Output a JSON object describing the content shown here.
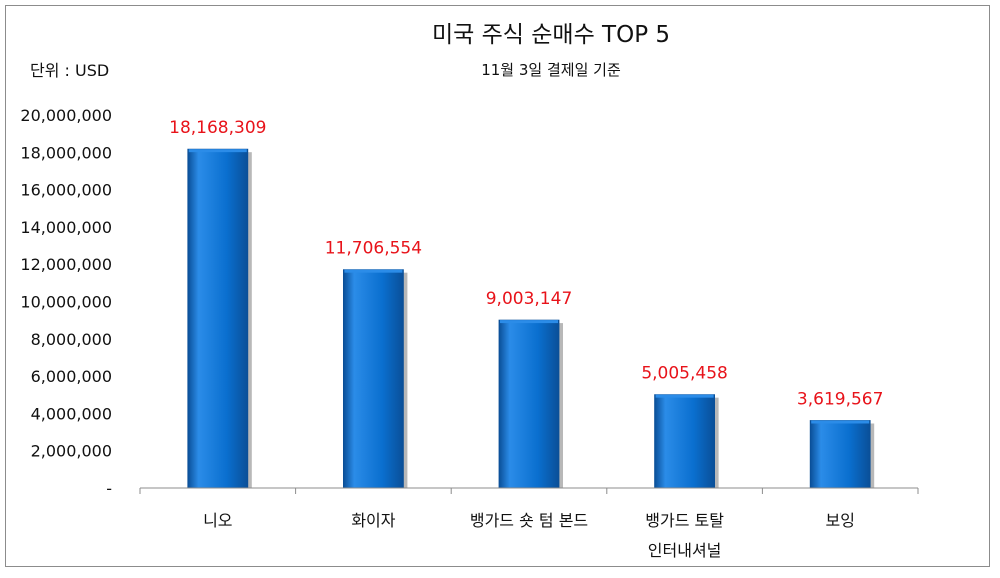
{
  "chart_data": {
    "type": "bar",
    "title": "미국 주식 순매수 TOP 5",
    "subtitle": "11월 3일 결제일 기준",
    "unit_label": "단위 : USD",
    "categories": [
      "니오",
      "화이자",
      "뱅가드 숏 텀 본드",
      "뱅가드 토탈 인터내셔널",
      "보잉"
    ],
    "category_lines": [
      [
        "니오"
      ],
      [
        "화이자"
      ],
      [
        "뱅가드 숏 텀 본드"
      ],
      [
        "뱅가드 토탈",
        "인터내셔널"
      ],
      [
        "보잉"
      ]
    ],
    "values": [
      18168309,
      11706554,
      9003147,
      5005458,
      3619567
    ],
    "data_labels": [
      "18,168,309",
      "11,706,554",
      "9,003,147",
      "5,005,458",
      "3,619,567"
    ],
    "ylim": [
      0,
      20000000
    ],
    "y_ticks": [
      0,
      2000000,
      4000000,
      6000000,
      8000000,
      10000000,
      12000000,
      14000000,
      16000000,
      18000000,
      20000000
    ],
    "y_tick_labels": [
      "-",
      "2,000,000",
      "4,000,000",
      "6,000,000",
      "8,000,000",
      "10,000,000",
      "12,000,000",
      "14,000,000",
      "16,000,000",
      "18,000,000",
      "20,000,000"
    ],
    "xlabel": "",
    "ylabel": "",
    "grid": false,
    "legend": "none",
    "colors": {
      "bar": "#0a6fcf",
      "bar_light": "#2b8ce8",
      "bar_dark": "#0a4f98",
      "data_label": "#e8131a",
      "axis": "#8c8c8c",
      "text": "#111111"
    }
  }
}
